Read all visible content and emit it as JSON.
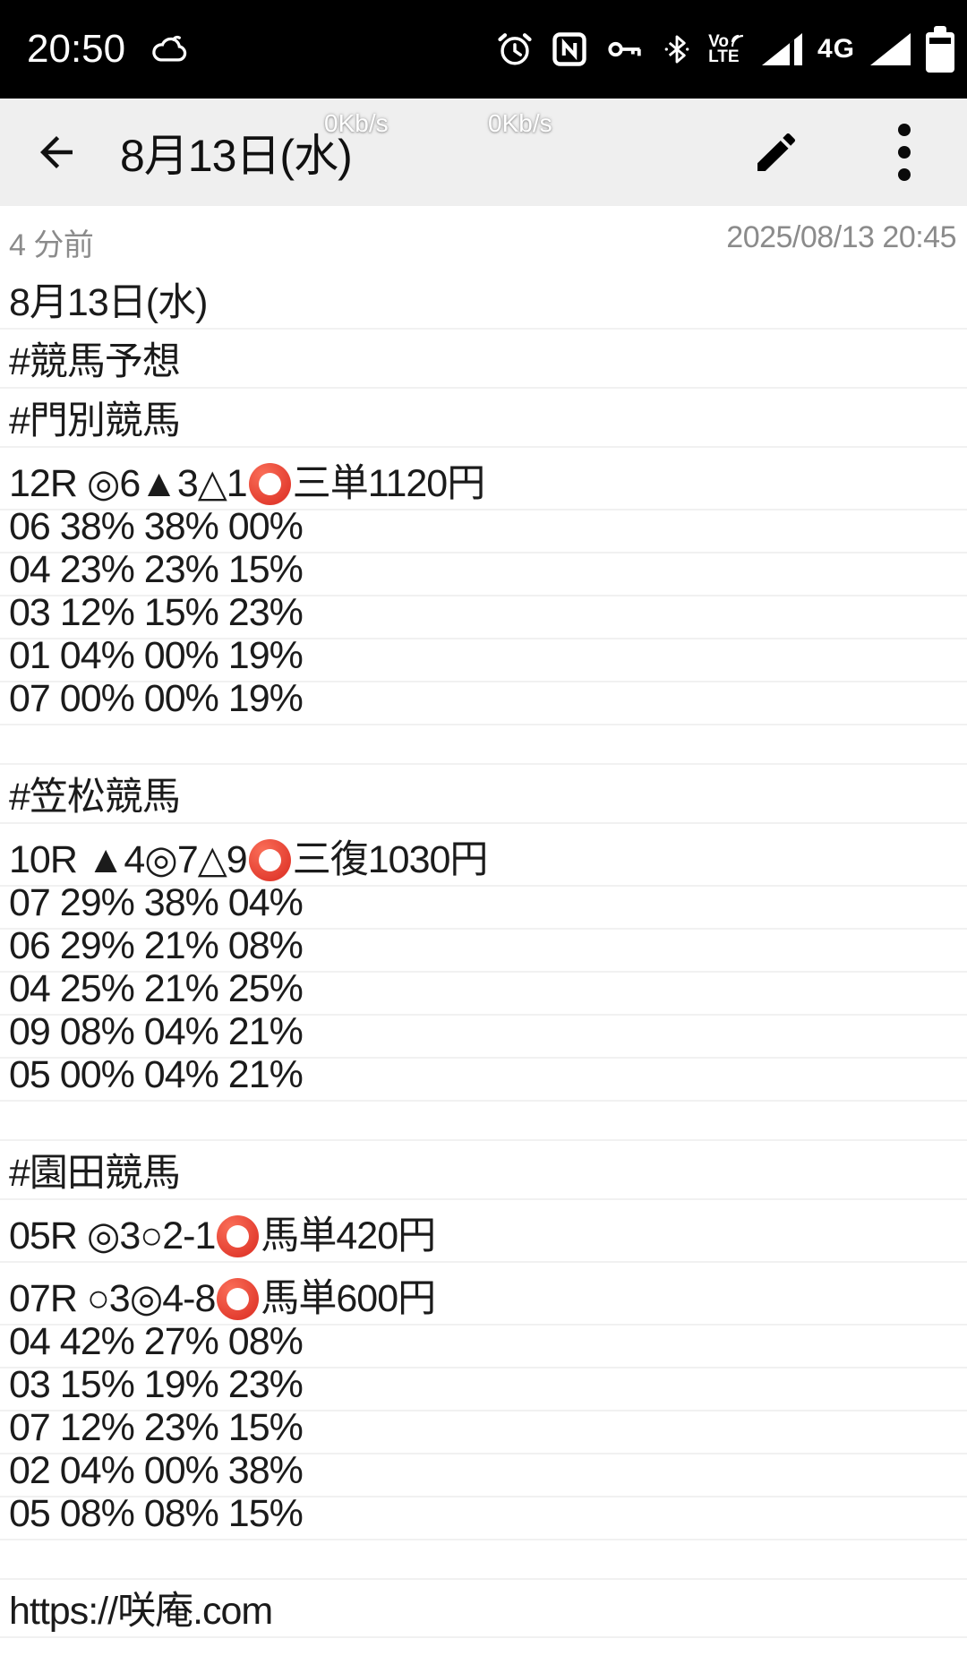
{
  "status_bar": {
    "time": "20:50",
    "network_type": "4G",
    "network_speed_overlays": [
      "0Kb/s",
      "0Kb/s"
    ],
    "icons": [
      "weather-cloud-icon",
      "alarm-icon",
      "nfc-icon",
      "key-icon",
      "bluetooth-icon",
      "volte-icon",
      "signal-triangle-icon",
      "signal-triangle-icon",
      "battery-icon"
    ],
    "volte_top": "Vo",
    "volte_bottom": "LTE"
  },
  "app_bar": {
    "title": "8月13日(水)"
  },
  "meta": {
    "relative_time": "4 分前",
    "datetime": "2025/08/13 20:45"
  },
  "note": {
    "lines": [
      {
        "type": "jp",
        "text": "8月13日(水)"
      },
      {
        "type": "jp",
        "text": "#競馬予想"
      },
      {
        "type": "jp",
        "text": "#門別競馬"
      },
      {
        "type": "race",
        "text": "12R ◎6▲3△1⭕三単1120円"
      },
      {
        "type": "num",
        "text": "06 38% 38% 00%"
      },
      {
        "type": "num",
        "text": "04 23% 23% 15%"
      },
      {
        "type": "num",
        "text": "03 12% 15% 23%"
      },
      {
        "type": "num",
        "text": "01 04% 00% 19%"
      },
      {
        "type": "num",
        "text": "07 00% 00% 19%"
      },
      {
        "type": "blank",
        "text": ""
      },
      {
        "type": "jp",
        "text": "#笠松競馬"
      },
      {
        "type": "race",
        "text": "10R ▲4◎7△9⭕三復1030円"
      },
      {
        "type": "num",
        "text": "07 29% 38% 04%"
      },
      {
        "type": "num",
        "text": "06 29% 21% 08%"
      },
      {
        "type": "num",
        "text": "04 25% 21% 25%"
      },
      {
        "type": "num",
        "text": "09 08% 04% 21%"
      },
      {
        "type": "num",
        "text": "05 00% 04% 21%"
      },
      {
        "type": "blank",
        "text": ""
      },
      {
        "type": "jp",
        "text": "#園田競馬"
      },
      {
        "type": "race",
        "text": "05R ◎3○2-1⭕馬単420円"
      },
      {
        "type": "race",
        "text": "07R ○3◎4-8⭕馬単600円"
      },
      {
        "type": "num",
        "text": "04 42% 27% 08%"
      },
      {
        "type": "num",
        "text": "03 15% 19% 23%"
      },
      {
        "type": "num",
        "text": "07 12% 23% 15%"
      },
      {
        "type": "num",
        "text": "02 04% 00% 38%"
      },
      {
        "type": "num",
        "text": "05 08% 08% 15%"
      },
      {
        "type": "blank",
        "text": ""
      },
      {
        "type": "url",
        "text": "https://咲庵.com"
      }
    ]
  },
  "colors": {
    "status_bar_bg": "#000000",
    "app_bar_bg": "#efefef",
    "body_text": "#1b1b1b",
    "meta_text": "#8b8b8b",
    "ruled_line": "#f1f1f1",
    "red_circle": "#e23b2e"
  }
}
